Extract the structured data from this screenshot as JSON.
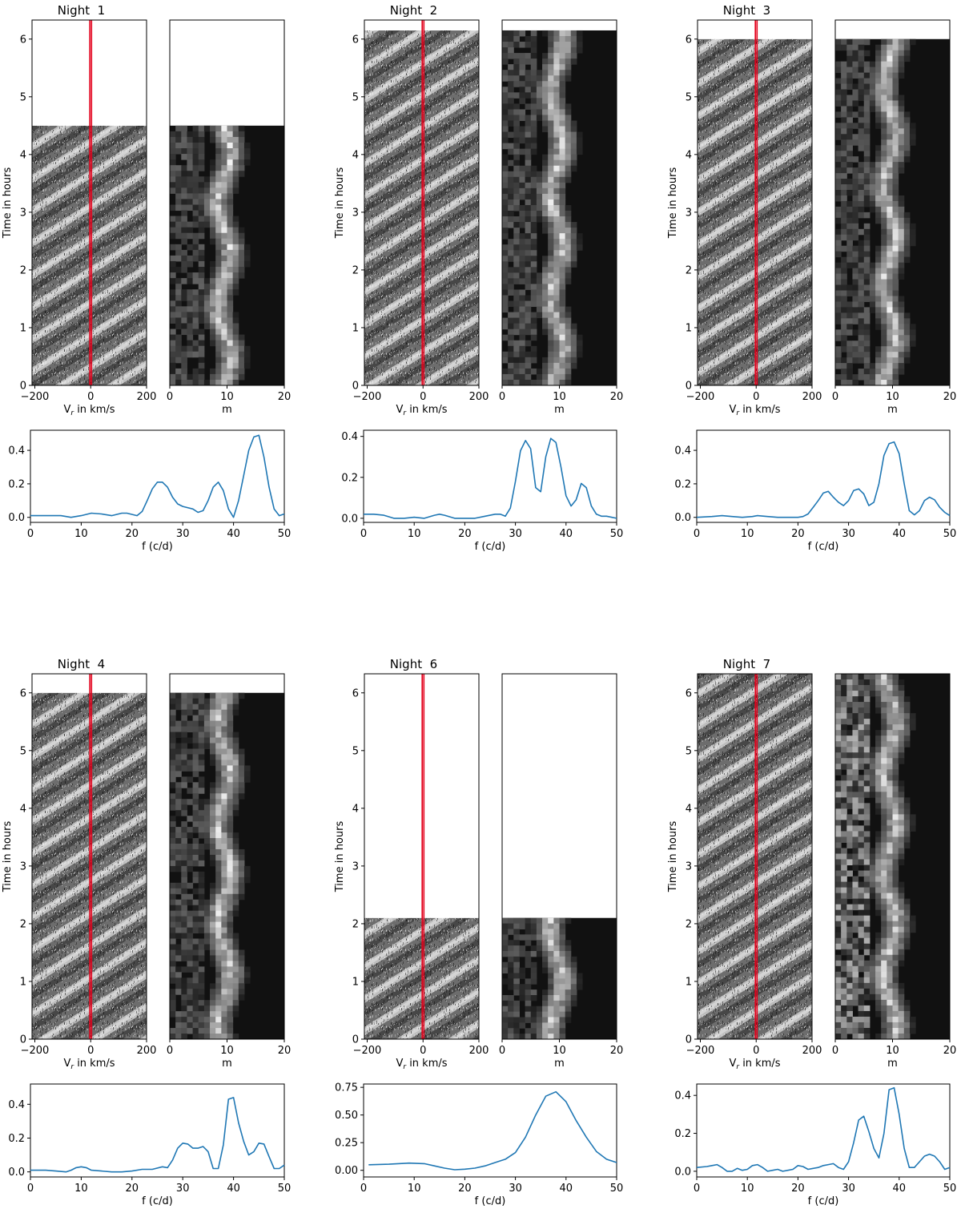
{
  "figure": {
    "gray_axis_label_y": "Time in hours",
    "gray_axis_label_x_left": "V",
    "gray_axis_label_x_left_sub": "r",
    "gray_axis_label_x_left_rest": " in km/s",
    "gray_axis_label_x_right": "m",
    "spectrum_axis_label_x": "f (c/d)",
    "line_color": "#1f77b4",
    "marker_color": "#e3001b"
  },
  "chart_data": [
    {
      "type": "line",
      "title": "Night  1",
      "xlabel": "f (c/d)",
      "xlim": [
        0,
        50
      ],
      "ylim": [
        -0.03,
        0.52
      ],
      "yticks": [
        0.0,
        0.2,
        0.4
      ],
      "xticks": [
        0,
        10,
        20,
        30,
        40,
        50
      ],
      "observed_hours": 4.5,
      "time_ylim": [
        0,
        6.33
      ],
      "time_yticks": [
        0,
        1,
        2,
        3,
        4,
        5,
        6
      ],
      "vr_xlim": [
        -210,
        200
      ],
      "vr_xticks": [
        -200,
        0,
        200
      ],
      "m_xlim": [
        0,
        20
      ],
      "m_xticks": [
        0,
        10,
        20
      ],
      "marker_vr": [
        -3,
        3
      ],
      "x": [
        0,
        4,
        6,
        8,
        10,
        12,
        14,
        16,
        18,
        19,
        21,
        22,
        23,
        24,
        25,
        26,
        27,
        28,
        29,
        30,
        32,
        33,
        34,
        35,
        36,
        37,
        38,
        39,
        40,
        41,
        42,
        43,
        44,
        45,
        46,
        47,
        48,
        49,
        50
      ],
      "y": [
        0.01,
        0.01,
        0.01,
        0.0,
        0.01,
        0.025,
        0.02,
        0.01,
        0.025,
        0.025,
        0.01,
        0.035,
        0.1,
        0.17,
        0.21,
        0.21,
        0.18,
        0.12,
        0.08,
        0.065,
        0.05,
        0.03,
        0.04,
        0.1,
        0.18,
        0.21,
        0.16,
        0.05,
        0.0,
        0.1,
        0.25,
        0.4,
        0.48,
        0.49,
        0.36,
        0.18,
        0.05,
        0.01,
        0.02
      ]
    },
    {
      "type": "line",
      "title": "Night  2",
      "xlabel": "f (c/d)",
      "xlim": [
        0,
        50
      ],
      "ylim": [
        -0.02,
        0.43
      ],
      "yticks": [
        0.0,
        0.2,
        0.4
      ],
      "xticks": [
        0,
        10,
        20,
        30,
        40,
        50
      ],
      "observed_hours": 6.15,
      "time_ylim": [
        0,
        6.33
      ],
      "time_yticks": [
        0,
        1,
        2,
        3,
        4,
        5,
        6
      ],
      "vr_xlim": [
        -210,
        200
      ],
      "vr_xticks": [
        -200,
        0,
        200
      ],
      "m_xlim": [
        0,
        20
      ],
      "m_xticks": [
        0,
        10,
        20
      ],
      "marker_vr": [
        -3,
        3
      ],
      "x": [
        0,
        2,
        4,
        6,
        8,
        10,
        12,
        14,
        15,
        16,
        18,
        20,
        22,
        24,
        26,
        27,
        28,
        29,
        30,
        31,
        32,
        33,
        34,
        35,
        36,
        37,
        38,
        39,
        40,
        41,
        42,
        43,
        44,
        45,
        46,
        47,
        48,
        50
      ],
      "y": [
        0.02,
        0.02,
        0.015,
        0.0,
        0.0,
        0.005,
        0.0,
        0.015,
        0.02,
        0.015,
        0.0,
        0.0,
        0.0,
        0.01,
        0.02,
        0.02,
        0.01,
        0.05,
        0.18,
        0.33,
        0.38,
        0.34,
        0.15,
        0.13,
        0.3,
        0.39,
        0.37,
        0.25,
        0.11,
        0.06,
        0.09,
        0.17,
        0.15,
        0.06,
        0.02,
        0.01,
        0.01,
        0.0
      ]
    },
    {
      "type": "line",
      "title": "Night  3",
      "xlabel": "f (c/d)",
      "xlim": [
        0,
        50
      ],
      "ylim": [
        -0.03,
        0.52
      ],
      "yticks": [
        0.0,
        0.2,
        0.4
      ],
      "xticks": [
        0,
        10,
        20,
        30,
        40,
        50
      ],
      "observed_hours": 6.0,
      "time_ylim": [
        0,
        6.33
      ],
      "time_yticks": [
        0,
        1,
        2,
        3,
        4,
        5,
        6
      ],
      "vr_xlim": [
        -210,
        200
      ],
      "vr_xticks": [
        -200,
        0,
        200
      ],
      "m_xlim": [
        0,
        20
      ],
      "m_xticks": [
        0,
        10,
        20
      ],
      "marker_vr": [
        -3,
        3
      ],
      "x": [
        0,
        3,
        5,
        7,
        9,
        11,
        12,
        14,
        16,
        18,
        20,
        21,
        22,
        23,
        24,
        25,
        26,
        27,
        28,
        29,
        30,
        31,
        32,
        33,
        34,
        35,
        36,
        37,
        38,
        39,
        40,
        41,
        42,
        43,
        44,
        45,
        46,
        47,
        48,
        49,
        50
      ],
      "y": [
        0.0,
        0.005,
        0.01,
        0.005,
        0.0,
        0.005,
        0.01,
        0.005,
        0.0,
        0.0,
        0.0,
        0.005,
        0.02,
        0.06,
        0.1,
        0.145,
        0.155,
        0.12,
        0.09,
        0.07,
        0.1,
        0.16,
        0.17,
        0.14,
        0.07,
        0.09,
        0.2,
        0.37,
        0.44,
        0.45,
        0.38,
        0.2,
        0.04,
        0.015,
        0.04,
        0.1,
        0.12,
        0.105,
        0.06,
        0.03,
        0.01
      ]
    },
    {
      "type": "line",
      "title": "Night  4",
      "xlabel": "f (c/d)",
      "xlim": [
        0,
        50
      ],
      "ylim": [
        -0.03,
        0.52
      ],
      "yticks": [
        0.0,
        0.2,
        0.4
      ],
      "xticks": [
        0,
        10,
        20,
        30,
        40,
        50
      ],
      "observed_hours": 6.0,
      "time_ylim": [
        0,
        6.33
      ],
      "time_yticks": [
        0,
        1,
        2,
        3,
        4,
        5,
        6
      ],
      "vr_xlim": [
        -210,
        200
      ],
      "vr_xticks": [
        -200,
        0,
        200
      ],
      "m_xlim": [
        0,
        20
      ],
      "m_xticks": [
        0,
        10,
        20
      ],
      "marker_vr": [
        -3,
        3
      ],
      "x": [
        0,
        3,
        5,
        7,
        8,
        9,
        10,
        11,
        12,
        14,
        16,
        18,
        20,
        22,
        24,
        26,
        27,
        28,
        29,
        30,
        31,
        32,
        33,
        34,
        35,
        36,
        37,
        38,
        39,
        40,
        41,
        42,
        43,
        44,
        45,
        46,
        47,
        48,
        49,
        50
      ],
      "y": [
        0.01,
        0.01,
        0.005,
        0.0,
        0.01,
        0.025,
        0.03,
        0.025,
        0.01,
        0.005,
        0.0,
        0.0,
        0.005,
        0.015,
        0.015,
        0.03,
        0.025,
        0.07,
        0.14,
        0.17,
        0.165,
        0.14,
        0.14,
        0.15,
        0.12,
        0.02,
        0.02,
        0.16,
        0.43,
        0.44,
        0.29,
        0.18,
        0.1,
        0.12,
        0.17,
        0.165,
        0.09,
        0.02,
        0.02,
        0.04
      ]
    },
    {
      "type": "line",
      "title": "Night  6",
      "xlabel": "f (c/d)",
      "xlim": [
        0,
        50
      ],
      "ylim": [
        -0.06,
        0.78
      ],
      "yticks": [
        0.0,
        0.25,
        0.5,
        0.75
      ],
      "xticks": [
        0,
        10,
        20,
        30,
        40,
        50
      ],
      "observed_hours": 2.1,
      "time_ylim": [
        0,
        6.33
      ],
      "time_yticks": [
        0,
        1,
        2,
        3,
        4,
        5,
        6
      ],
      "vr_xlim": [
        -210,
        200
      ],
      "vr_xticks": [
        -200,
        0,
        200
      ],
      "m_xlim": [
        0,
        20
      ],
      "m_xticks": [
        0,
        10,
        20
      ],
      "marker_vr": [
        -3,
        3
      ],
      "x": [
        1,
        5,
        9,
        12,
        14,
        16,
        18,
        20,
        22,
        24,
        26,
        28,
        30,
        32,
        34,
        36,
        38,
        40,
        42,
        44,
        46,
        48,
        50
      ],
      "y": [
        0.05,
        0.055,
        0.065,
        0.06,
        0.04,
        0.02,
        0.005,
        0.01,
        0.02,
        0.04,
        0.07,
        0.1,
        0.16,
        0.3,
        0.5,
        0.67,
        0.71,
        0.62,
        0.45,
        0.3,
        0.17,
        0.1,
        0.07
      ]
    },
    {
      "type": "line",
      "title": "Night  7",
      "xlabel": "f (c/d)",
      "xlim": [
        0,
        50
      ],
      "ylim": [
        -0.03,
        0.46
      ],
      "yticks": [
        0.0,
        0.2,
        0.4
      ],
      "xticks": [
        0,
        10,
        20,
        30,
        40,
        50
      ],
      "observed_hours": 6.33,
      "time_ylim": [
        0,
        6.33
      ],
      "time_yticks": [
        0,
        1,
        2,
        3,
        4,
        5,
        6
      ],
      "vr_xlim": [
        -210,
        200
      ],
      "vr_xticks": [
        -200,
        0,
        200
      ],
      "m_xlim": [
        0,
        20
      ],
      "m_xticks": [
        0,
        10,
        20
      ],
      "marker_vr": [
        -3,
        3
      ],
      "x": [
        0,
        2,
        3,
        4,
        5,
        6,
        7,
        8,
        9,
        10,
        11,
        12,
        13,
        14,
        15,
        16,
        17,
        18,
        19,
        20,
        21,
        22,
        23,
        24,
        25,
        26,
        27,
        28,
        29,
        30,
        31,
        32,
        33,
        34,
        35,
        36,
        37,
        38,
        39,
        40,
        41,
        42,
        43,
        44,
        45,
        46,
        47,
        48,
        49,
        50
      ],
      "y": [
        0.02,
        0.025,
        0.03,
        0.035,
        0.02,
        0.0,
        0.0,
        0.015,
        0.005,
        0.01,
        0.03,
        0.035,
        0.02,
        0.0,
        0.005,
        0.01,
        0.0,
        0.005,
        0.01,
        0.03,
        0.025,
        0.01,
        0.015,
        0.02,
        0.03,
        0.035,
        0.04,
        0.02,
        0.01,
        0.05,
        0.15,
        0.27,
        0.29,
        0.21,
        0.12,
        0.07,
        0.2,
        0.43,
        0.44,
        0.3,
        0.12,
        0.02,
        0.02,
        0.05,
        0.08,
        0.09,
        0.08,
        0.05,
        0.01,
        0.02
      ]
    }
  ]
}
